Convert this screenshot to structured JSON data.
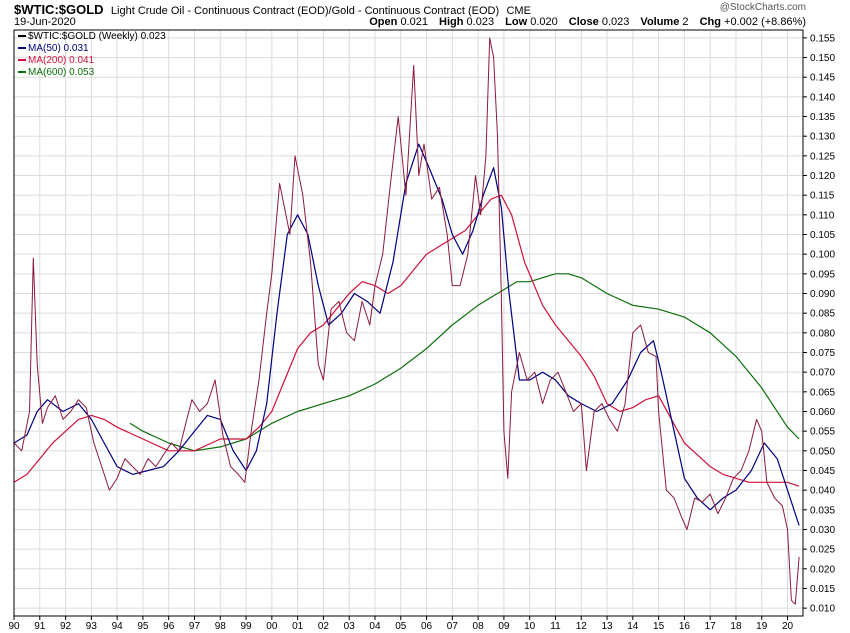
{
  "header": {
    "symbol": "$WTIC:$GOLD",
    "description": "Light Crude Oil - Continuous Contract (EOD)/Gold - Continuous Contract (EOD)",
    "exchange": "CME",
    "date": "19-Jun-2020",
    "watermark": "@StockCharts.com",
    "open_label": "Open",
    "open": "0.021",
    "high_label": "High",
    "high": "0.023",
    "low_label": "Low",
    "low": "0.020",
    "close_label": "Close",
    "close": "0.023",
    "volume_label": "Volume",
    "volume": "2",
    "chg_label": "Chg",
    "chg": "+0.002 (+8.86%)"
  },
  "legend": [
    {
      "label": "$WTIC:$GOLD (Weekly) 0.023",
      "color": "#000000"
    },
    {
      "label": "MA(50) 0.031",
      "color": "#000080"
    },
    {
      "label": "MA(200) 0.041",
      "color": "#d0103a"
    },
    {
      "label": "MA(600) 0.053",
      "color": "#0b6e0b"
    }
  ],
  "chart_data": {
    "type": "line",
    "title": "$WTIC:$GOLD Light Crude Oil - Continuous Contract (EOD)/Gold - Continuous Contract (EOD)",
    "xlabel": "",
    "ylabel": "",
    "ylim": [
      0.008,
      0.157
    ],
    "xlim": [
      1990.0,
      2020.6
    ],
    "y_ticks": [
      "0.010",
      "0.015",
      "0.020",
      "0.025",
      "0.030",
      "0.035",
      "0.040",
      "0.045",
      "0.050",
      "0.055",
      "0.060",
      "0.065",
      "0.070",
      "0.075",
      "0.080",
      "0.085",
      "0.090",
      "0.095",
      "0.100",
      "0.105",
      "0.110",
      "0.115",
      "0.120",
      "0.125",
      "0.130",
      "0.135",
      "0.140",
      "0.145",
      "0.150",
      "0.155"
    ],
    "x_ticks": [
      "90",
      "91",
      "92",
      "93",
      "94",
      "95",
      "96",
      "97",
      "98",
      "99",
      "00",
      "01",
      "02",
      "03",
      "04",
      "05",
      "06",
      "07",
      "08",
      "09",
      "10",
      "11",
      "12",
      "13",
      "14",
      "15",
      "16",
      "17",
      "18",
      "19",
      "20"
    ],
    "grid": true,
    "legend_position": "top-left",
    "series": [
      {
        "name": "$WTIC:$GOLD (Weekly)",
        "color": "#8b1a3a",
        "x": [
          1990.0,
          1990.3,
          1990.6,
          1990.75,
          1990.9,
          1991.1,
          1991.3,
          1991.6,
          1991.9,
          1992.2,
          1992.5,
          1992.8,
          1993.1,
          1993.4,
          1993.7,
          1994.0,
          1994.3,
          1994.6,
          1994.9,
          1995.2,
          1995.5,
          1995.8,
          1996.1,
          1996.4,
          1996.7,
          1996.9,
          1997.2,
          1997.5,
          1997.8,
          1998.1,
          1998.4,
          1998.7,
          1998.95,
          1999.2,
          1999.5,
          1999.8,
          2000.0,
          2000.3,
          2000.7,
          2000.9,
          2001.2,
          2001.5,
          2001.8,
          2002.0,
          2002.3,
          2002.6,
          2002.9,
          2003.2,
          2003.5,
          2003.8,
          2004.0,
          2004.3,
          2004.6,
          2004.9,
          2005.2,
          2005.5,
          2005.7,
          2005.9,
          2006.2,
          2006.5,
          2006.8,
          2007.0,
          2007.3,
          2007.6,
          2007.9,
          2008.1,
          2008.3,
          2008.45,
          2008.6,
          2008.75,
          2008.9,
          2009.0,
          2009.15,
          2009.3,
          2009.6,
          2009.9,
          2010.2,
          2010.5,
          2010.8,
          2011.1,
          2011.4,
          2011.7,
          2012.0,
          2012.2,
          2012.5,
          2012.8,
          2013.1,
          2013.4,
          2013.7,
          2014.0,
          2014.3,
          2014.6,
          2014.9,
          2015.0,
          2015.3,
          2015.6,
          2015.9,
          2016.1,
          2016.4,
          2016.7,
          2017.0,
          2017.3,
          2017.6,
          2017.9,
          2018.2,
          2018.5,
          2018.8,
          2019.0,
          2019.2,
          2019.5,
          2019.8,
          2020.0,
          2020.15,
          2020.3,
          2020.45
        ],
        "y": [
          0.052,
          0.05,
          0.06,
          0.099,
          0.072,
          0.057,
          0.061,
          0.064,
          0.058,
          0.06,
          0.063,
          0.061,
          0.052,
          0.046,
          0.04,
          0.043,
          0.048,
          0.046,
          0.044,
          0.048,
          0.046,
          0.049,
          0.052,
          0.05,
          0.058,
          0.063,
          0.06,
          0.062,
          0.068,
          0.054,
          0.046,
          0.044,
          0.042,
          0.055,
          0.068,
          0.085,
          0.095,
          0.118,
          0.105,
          0.125,
          0.115,
          0.098,
          0.072,
          0.068,
          0.086,
          0.088,
          0.08,
          0.078,
          0.088,
          0.082,
          0.092,
          0.1,
          0.118,
          0.135,
          0.115,
          0.148,
          0.12,
          0.128,
          0.114,
          0.117,
          0.105,
          0.092,
          0.092,
          0.1,
          0.12,
          0.11,
          0.125,
          0.155,
          0.15,
          0.13,
          0.09,
          0.055,
          0.043,
          0.065,
          0.075,
          0.068,
          0.07,
          0.062,
          0.068,
          0.07,
          0.065,
          0.06,
          0.062,
          0.045,
          0.06,
          0.062,
          0.058,
          0.055,
          0.062,
          0.08,
          0.082,
          0.075,
          0.074,
          0.06,
          0.04,
          0.038,
          0.033,
          0.03,
          0.038,
          0.037,
          0.039,
          0.034,
          0.038,
          0.043,
          0.045,
          0.05,
          0.058,
          0.055,
          0.042,
          0.038,
          0.036,
          0.03,
          0.012,
          0.011,
          0.023
        ]
      },
      {
        "name": "MA(50)",
        "color": "#000080",
        "x": [
          1990.0,
          1990.5,
          1990.9,
          1991.3,
          1991.9,
          1992.5,
          1993.0,
          1993.5,
          1994.0,
          1994.6,
          1995.2,
          1995.8,
          1996.4,
          1997.0,
          1997.5,
          1998.0,
          1998.5,
          1999.0,
          1999.4,
          1999.8,
          2000.2,
          2000.6,
          2001.0,
          2001.4,
          2001.8,
          2002.2,
          2002.7,
          2003.2,
          2003.7,
          2004.2,
          2004.7,
          2005.2,
          2005.7,
          2006.1,
          2006.6,
          2007.0,
          2007.4,
          2007.8,
          2008.2,
          2008.6,
          2008.9,
          2009.2,
          2009.6,
          2010.0,
          2010.5,
          2011.0,
          2011.5,
          2012.0,
          2012.6,
          2013.2,
          2013.8,
          2014.3,
          2014.8,
          2015.1,
          2015.5,
          2016.0,
          2016.5,
          2017.0,
          2017.5,
          2018.0,
          2018.6,
          2019.1,
          2019.6,
          2020.0,
          2020.45
        ],
        "y": [
          0.052,
          0.054,
          0.06,
          0.063,
          0.06,
          0.062,
          0.058,
          0.052,
          0.046,
          0.044,
          0.045,
          0.046,
          0.05,
          0.055,
          0.059,
          0.058,
          0.05,
          0.045,
          0.05,
          0.062,
          0.085,
          0.105,
          0.11,
          0.105,
          0.092,
          0.082,
          0.085,
          0.09,
          0.088,
          0.085,
          0.098,
          0.118,
          0.128,
          0.122,
          0.114,
          0.105,
          0.1,
          0.106,
          0.115,
          0.122,
          0.112,
          0.09,
          0.068,
          0.068,
          0.07,
          0.068,
          0.064,
          0.062,
          0.06,
          0.062,
          0.068,
          0.075,
          0.078,
          0.07,
          0.058,
          0.043,
          0.038,
          0.035,
          0.038,
          0.04,
          0.045,
          0.052,
          0.048,
          0.04,
          0.031
        ]
      },
      {
        "name": "MA(200)",
        "color": "#d0103a",
        "x": [
          1990.0,
          1990.5,
          1991.0,
          1991.5,
          1992.0,
          1992.5,
          1993.0,
          1993.5,
          1994.0,
          1995.0,
          1996.0,
          1997.0,
          1998.0,
          1999.0,
          1999.5,
          2000.0,
          2000.5,
          2001.0,
          2001.5,
          2002.0,
          2002.5,
          2003.0,
          2003.5,
          2004.0,
          2004.5,
          2005.0,
          2005.5,
          2006.0,
          2006.5,
          2007.0,
          2007.5,
          2008.0,
          2008.5,
          2008.9,
          2009.3,
          2009.8,
          2010.5,
          2011.0,
          2011.5,
          2012.0,
          2012.5,
          2013.0,
          2013.5,
          2014.0,
          2014.5,
          2015.0,
          2015.5,
          2016.0,
          2016.5,
          2017.0,
          2017.5,
          2018.0,
          2018.5,
          2019.0,
          2019.5,
          2020.0,
          2020.45
        ],
        "y": [
          0.042,
          0.044,
          0.048,
          0.052,
          0.055,
          0.058,
          0.059,
          0.058,
          0.056,
          0.053,
          0.05,
          0.05,
          0.053,
          0.053,
          0.056,
          0.06,
          0.068,
          0.076,
          0.08,
          0.082,
          0.086,
          0.09,
          0.093,
          0.092,
          0.09,
          0.092,
          0.096,
          0.1,
          0.102,
          0.104,
          0.106,
          0.11,
          0.114,
          0.115,
          0.11,
          0.098,
          0.087,
          0.082,
          0.078,
          0.074,
          0.069,
          0.062,
          0.06,
          0.061,
          0.063,
          0.064,
          0.058,
          0.052,
          0.049,
          0.046,
          0.044,
          0.043,
          0.042,
          0.042,
          0.042,
          0.042,
          0.041
        ]
      },
      {
        "name": "MA(600)",
        "color": "#0b6e0b",
        "x": [
          1994.5,
          1995.0,
          1996.0,
          1997.0,
          1998.0,
          1999.0,
          2000.0,
          2001.0,
          2002.0,
          2003.0,
          2004.0,
          2005.0,
          2006.0,
          2007.0,
          2008.0,
          2008.5,
          2009.0,
          2009.5,
          2010.0,
          2011.0,
          2011.5,
          2012.0,
          2013.0,
          2014.0,
          2015.0,
          2016.0,
          2017.0,
          2018.0,
          2019.0,
          2020.0,
          2020.45
        ],
        "y": [
          0.057,
          0.055,
          0.052,
          0.05,
          0.051,
          0.053,
          0.057,
          0.06,
          0.062,
          0.064,
          0.067,
          0.071,
          0.076,
          0.082,
          0.087,
          0.089,
          0.091,
          0.093,
          0.093,
          0.095,
          0.095,
          0.094,
          0.09,
          0.087,
          0.086,
          0.084,
          0.08,
          0.074,
          0.066,
          0.056,
          0.053
        ]
      }
    ]
  }
}
